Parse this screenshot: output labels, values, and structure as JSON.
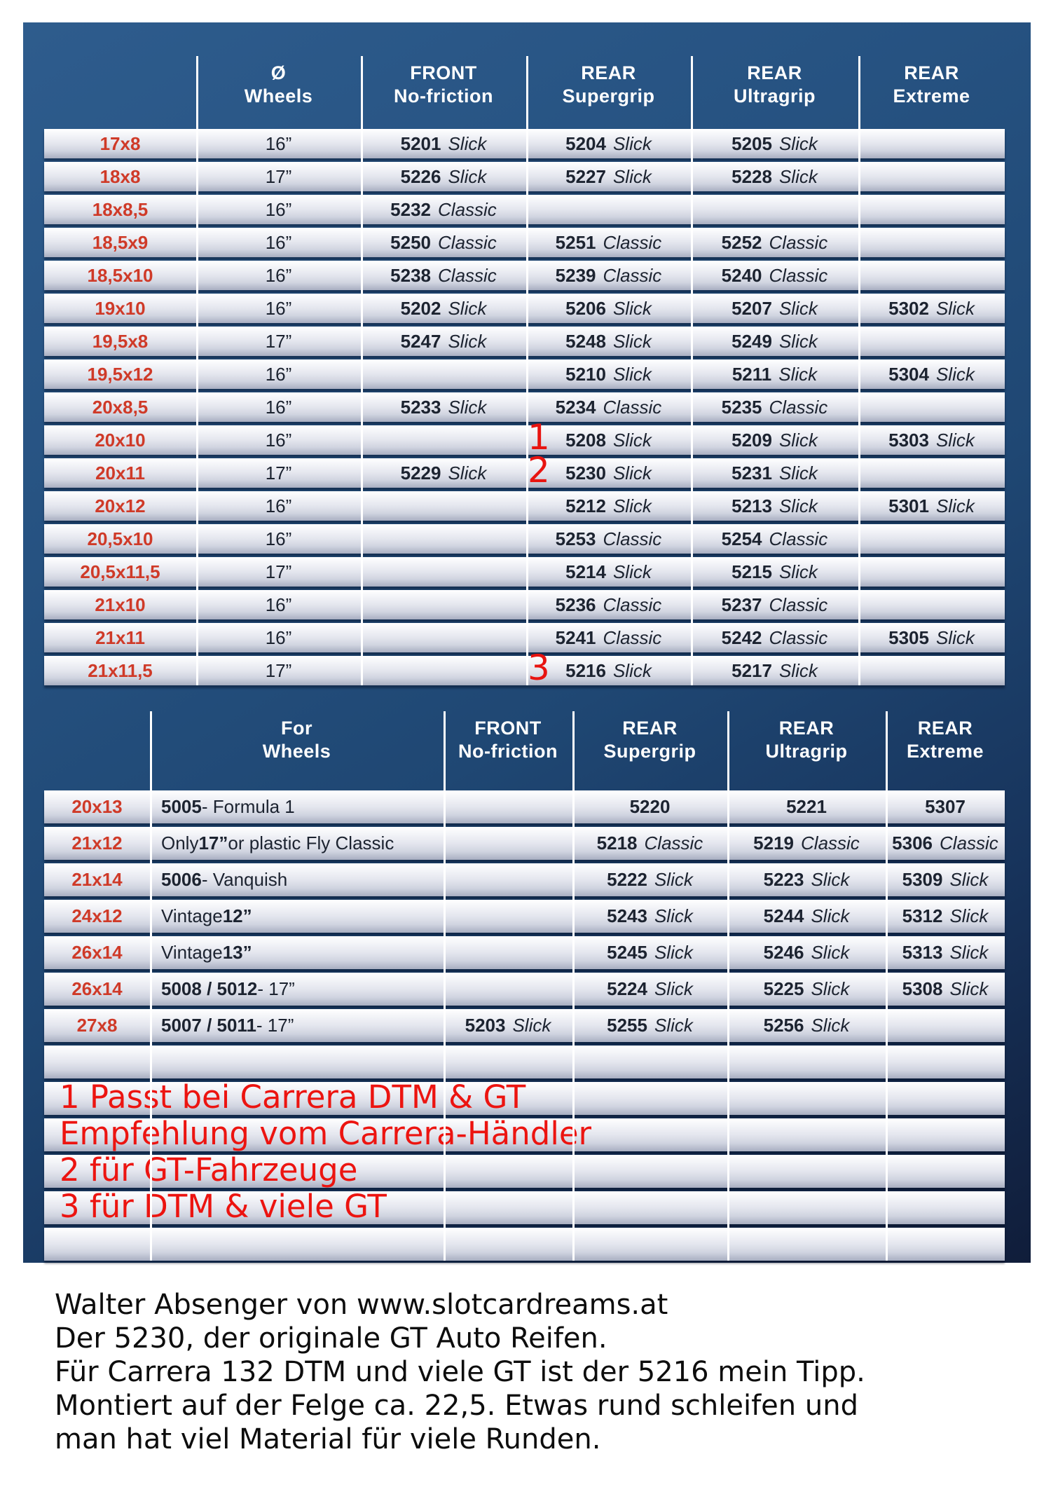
{
  "table1": {
    "headers": [
      {
        "top": "Ø",
        "bottom": "Wheels"
      },
      {
        "top": "FRONT",
        "bottom": "No-friction"
      },
      {
        "top": "REAR",
        "bottom": "Supergrip"
      },
      {
        "top": "REAR",
        "bottom": "Ultragrip"
      },
      {
        "top": "REAR",
        "bottom": "Extreme"
      }
    ],
    "rows": [
      {
        "size": "17x8",
        "wheel": "16”",
        "front": {
          "code": "5201",
          "type": "Slick"
        },
        "supergrip": {
          "code": "5204",
          "type": "Slick"
        },
        "ultragrip": {
          "code": "5205",
          "type": "Slick"
        }
      },
      {
        "size": "18x8",
        "wheel": "17”",
        "front": {
          "code": "5226",
          "type": "Slick"
        },
        "supergrip": {
          "code": "5227",
          "type": "Slick"
        },
        "ultragrip": {
          "code": "5228",
          "type": "Slick"
        }
      },
      {
        "size": "18x8,5",
        "wheel": "16”",
        "front": {
          "code": "5232",
          "type": "Classic"
        }
      },
      {
        "size": "18,5x9",
        "wheel": "16”",
        "front": {
          "code": "5250",
          "type": "Classic"
        },
        "supergrip": {
          "code": "5251",
          "type": "Classic"
        },
        "ultragrip": {
          "code": "5252",
          "type": "Classic"
        }
      },
      {
        "size": "18,5x10",
        "wheel": "16”",
        "front": {
          "code": "5238",
          "type": "Classic"
        },
        "supergrip": {
          "code": "5239",
          "type": "Classic"
        },
        "ultragrip": {
          "code": "5240",
          "type": "Classic"
        }
      },
      {
        "size": "19x10",
        "wheel": "16”",
        "front": {
          "code": "5202",
          "type": "Slick"
        },
        "supergrip": {
          "code": "5206",
          "type": "Slick"
        },
        "ultragrip": {
          "code": "5207",
          "type": "Slick"
        },
        "extreme": {
          "code": "5302",
          "type": "Slick"
        }
      },
      {
        "size": "19,5x8",
        "wheel": "17”",
        "front": {
          "code": "5247",
          "type": "Slick"
        },
        "supergrip": {
          "code": "5248",
          "type": "Slick"
        },
        "ultragrip": {
          "code": "5249",
          "type": "Slick"
        }
      },
      {
        "size": "19,5x12",
        "wheel": "16”",
        "supergrip": {
          "code": "5210",
          "type": "Slick"
        },
        "ultragrip": {
          "code": "5211",
          "type": "Slick"
        },
        "extreme": {
          "code": "5304",
          "type": "Slick"
        }
      },
      {
        "size": "20x8,5",
        "wheel": "16”",
        "front": {
          "code": "5233",
          "type": "Slick"
        },
        "supergrip": {
          "code": "5234",
          "type": "Classic"
        },
        "ultragrip": {
          "code": "5235",
          "type": "Classic"
        }
      },
      {
        "size": "20x10",
        "wheel": "16”",
        "marker": "1",
        "supergrip": {
          "code": "5208",
          "type": "Slick"
        },
        "ultragrip": {
          "code": "5209",
          "type": "Slick"
        },
        "extreme": {
          "code": "5303",
          "type": "Slick"
        }
      },
      {
        "size": "20x11",
        "wheel": "17”",
        "marker": "2",
        "front": {
          "code": "5229",
          "type": "Slick"
        },
        "supergrip": {
          "code": "5230",
          "type": "Slick"
        },
        "ultragrip": {
          "code": "5231",
          "type": "Slick"
        }
      },
      {
        "size": "20x12",
        "wheel": "16”",
        "supergrip": {
          "code": "5212",
          "type": "Slick"
        },
        "ultragrip": {
          "code": "5213",
          "type": "Slick"
        },
        "extreme": {
          "code": "5301",
          "type": "Slick"
        }
      },
      {
        "size": "20,5x10",
        "wheel": "16”",
        "supergrip": {
          "code": "5253",
          "type": "Classic"
        },
        "ultragrip": {
          "code": "5254",
          "type": "Classic"
        }
      },
      {
        "size": "20,5x11,5",
        "wheel": "17”",
        "supergrip": {
          "code": "5214",
          "type": "Slick"
        },
        "ultragrip": {
          "code": "5215",
          "type": "Slick"
        }
      },
      {
        "size": "21x10",
        "wheel": "16”",
        "supergrip": {
          "code": "5236",
          "type": "Classic"
        },
        "ultragrip": {
          "code": "5237",
          "type": "Classic"
        }
      },
      {
        "size": "21x11",
        "wheel": "16”",
        "supergrip": {
          "code": "5241",
          "type": "Classic"
        },
        "ultragrip": {
          "code": "5242",
          "type": "Classic"
        },
        "extreme": {
          "code": "5305",
          "type": "Slick"
        }
      },
      {
        "size": "21x11,5",
        "wheel": "17”",
        "marker": "3",
        "supergrip": {
          "code": "5216",
          "type": "Slick"
        },
        "ultragrip": {
          "code": "5217",
          "type": "Slick"
        }
      }
    ]
  },
  "table2": {
    "headers": [
      {
        "top": "For",
        "bottom": "Wheels"
      },
      {
        "top": "FRONT",
        "bottom": "No-friction"
      },
      {
        "top": "REAR",
        "bottom": "Supergrip"
      },
      {
        "top": "REAR",
        "bottom": "Ultragrip"
      },
      {
        "top": "REAR",
        "bottom": "Extreme"
      }
    ],
    "rows": [
      {
        "size": "20x13",
        "desc": [
          {
            "b": "5005"
          },
          {
            "t": " - Formula 1"
          }
        ],
        "supergrip": {
          "code": "5220",
          "type": ""
        },
        "ultragrip": {
          "code": "5221",
          "type": ""
        },
        "extreme": {
          "code": "5307",
          "type": ""
        }
      },
      {
        "size": "21x12",
        "desc": [
          {
            "t": "Only "
          },
          {
            "b": "17”"
          },
          {
            "t": " or plastic Fly Classic"
          }
        ],
        "supergrip": {
          "code": "5218",
          "type": "Classic"
        },
        "ultragrip": {
          "code": "5219",
          "type": "Classic"
        },
        "extreme": {
          "code": "5306",
          "type": "Classic"
        }
      },
      {
        "size": "21x14",
        "desc": [
          {
            "b": "5006"
          },
          {
            "t": " - Vanquish"
          }
        ],
        "supergrip": {
          "code": "5222",
          "type": "Slick"
        },
        "ultragrip": {
          "code": "5223",
          "type": "Slick"
        },
        "extreme": {
          "code": "5309",
          "type": "Slick"
        }
      },
      {
        "size": "24x12",
        "desc": [
          {
            "t": "Vintage "
          },
          {
            "b": "12”"
          }
        ],
        "supergrip": {
          "code": "5243",
          "type": "Slick"
        },
        "ultragrip": {
          "code": "5244",
          "type": "Slick"
        },
        "extreme": {
          "code": "5312",
          "type": "Slick"
        }
      },
      {
        "size": "26x14",
        "desc": [
          {
            "t": "Vintage "
          },
          {
            "b": "13”"
          }
        ],
        "supergrip": {
          "code": "5245",
          "type": "Slick"
        },
        "ultragrip": {
          "code": "5246",
          "type": "Slick"
        },
        "extreme": {
          "code": "5313",
          "type": "Slick"
        }
      },
      {
        "size": "26x14",
        "desc": [
          {
            "b": "5008 / 5012"
          },
          {
            "t": " - 17”"
          }
        ],
        "supergrip": {
          "code": "5224",
          "type": "Slick"
        },
        "ultragrip": {
          "code": "5225",
          "type": "Slick"
        },
        "extreme": {
          "code": "5308",
          "type": "Slick"
        }
      },
      {
        "size": "27x8",
        "desc": [
          {
            "b": "5007 / 5011"
          },
          {
            "t": " - 17”"
          }
        ],
        "front": {
          "code": "5203",
          "type": "Slick"
        },
        "supergrip": {
          "code": "5255",
          "type": "Slick"
        },
        "ultragrip": {
          "code": "5256",
          "type": "Slick"
        }
      },
      {},
      {
        "annotation": "1 Passt bei Carrera DTM & GT"
      },
      {
        "annotation": "Empfehlung vom Carrera-Händler"
      },
      {
        "annotation": "2 für GT-Fahrzeuge"
      },
      {
        "annotation": "3 für DTM & viele GT"
      },
      {}
    ]
  },
  "footer": {
    "lines": [
      "Walter Absenger von www.slotcardreams.at",
      "Der 5230, der originale GT Auto Reifen.",
      "Für Carrera 132 DTM und viele GT ist der 5216 mein Tipp.",
      "Montiert auf der Felge ca. 22,5. Etwas rund schleifen und",
      "man hat viel Material für viele Runden."
    ]
  },
  "colors": {
    "panel_blue_top": "#2e5c8d",
    "panel_blue_bottom": "#101d3a",
    "row_label_red": "#cf3a28",
    "annotation_red": "#ec1410",
    "code_text": "#1c2330"
  }
}
